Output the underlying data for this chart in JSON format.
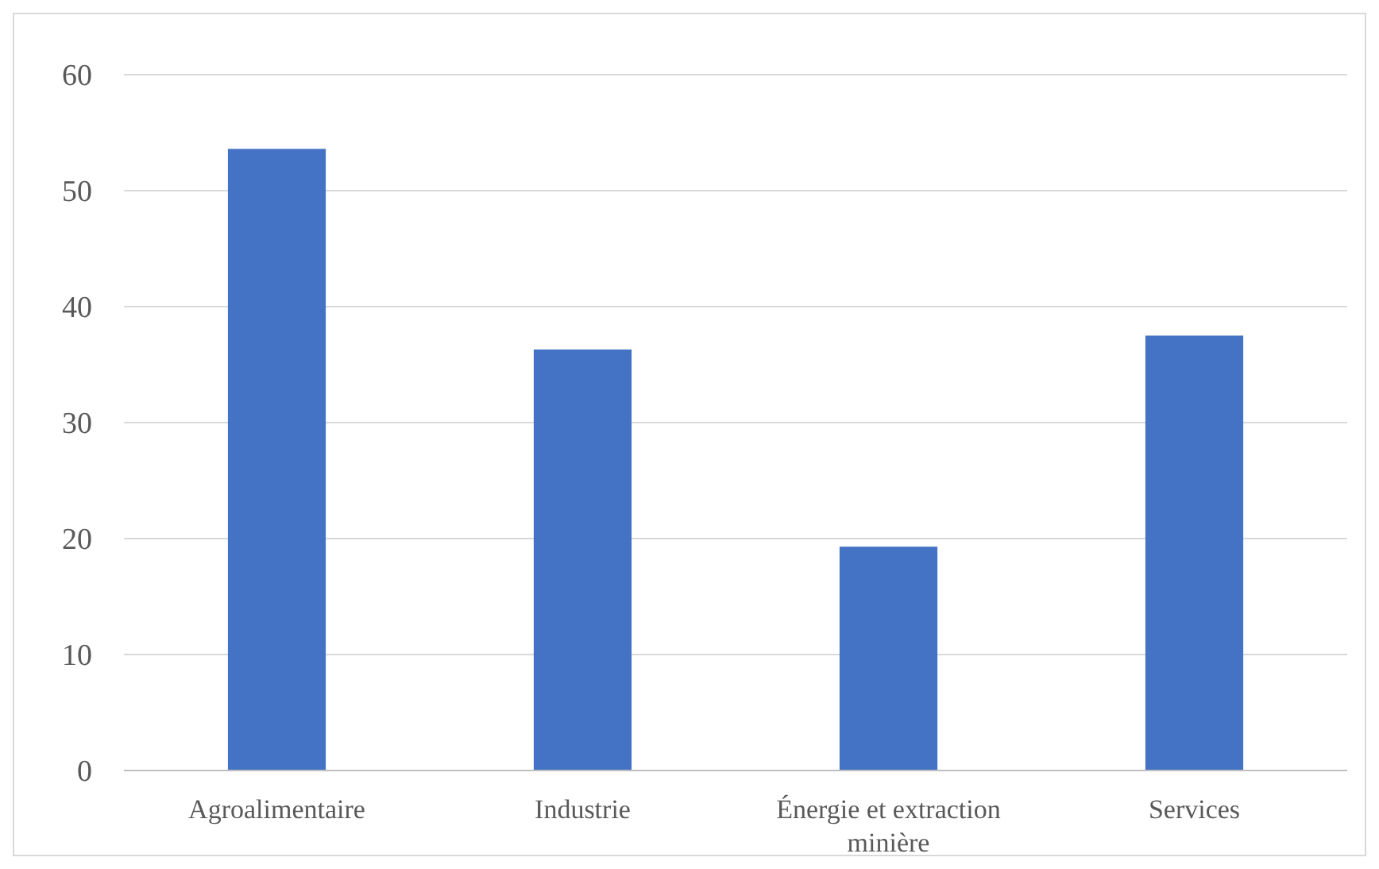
{
  "chart_data": {
    "type": "bar",
    "categories": [
      "Agroalimentaire",
      "Industrie",
      "Énergie et extraction minière",
      "Services"
    ],
    "values": [
      53.6,
      36.3,
      19.3,
      37.5
    ],
    "color": "#4472c4",
    "ylim": [
      0,
      60
    ],
    "yticks": [
      0,
      10,
      20,
      30,
      40,
      50,
      60
    ],
    "grid": "y"
  }
}
